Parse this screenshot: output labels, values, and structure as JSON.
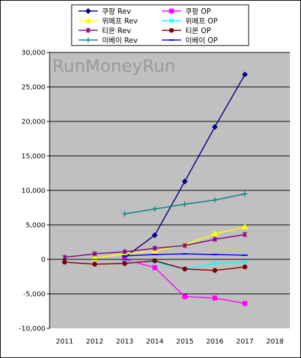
{
  "chart_data": {
    "type": "line",
    "watermark": "RunMoneyRun",
    "categories": [
      "2011",
      "2012",
      "2013",
      "2014",
      "2015",
      "2016",
      "2017",
      "2018"
    ],
    "ylim": [
      -10000,
      30000
    ],
    "yticks": [
      30000,
      25000,
      20000,
      15000,
      10000,
      5000,
      0,
      -5000,
      -10000
    ],
    "ytick_labels": [
      "30,000",
      "25,000",
      "20,000",
      "15,000",
      "10,000",
      "5,000",
      "0",
      "-5,000",
      "-10,000"
    ],
    "grid": true,
    "legend_position": "top",
    "series": [
      {
        "name": "쿠팡 Rev",
        "color": "#000080",
        "marker": "diamond",
        "values": [
          null,
          null,
          300,
          3500,
          11300,
          19200,
          26800,
          null
        ]
      },
      {
        "name": "쿠팡 OP",
        "color": "#ff00ff",
        "marker": "square",
        "values": [
          null,
          null,
          0,
          -1200,
          -5400,
          -5600,
          -6400,
          null
        ]
      },
      {
        "name": "위메프 Rev",
        "color": "#ffff00",
        "marker": "triangle",
        "values": [
          null,
          200,
          800,
          1200,
          2100,
          3700,
          4700,
          null
        ]
      },
      {
        "name": "위메프 OP",
        "color": "#00ffff",
        "marker": "x",
        "values": [
          null,
          null,
          -300,
          -400,
          -1400,
          -600,
          -400,
          null
        ]
      },
      {
        "name": "티몬 Rev",
        "color": "#800080",
        "marker": "star",
        "values": [
          300,
          800,
          1100,
          1600,
          2000,
          2900,
          3600,
          null
        ]
      },
      {
        "name": "티몬 OP",
        "color": "#800000",
        "marker": "circle",
        "values": [
          -400,
          -700,
          -600,
          -200,
          -1400,
          -1600,
          -1100,
          null
        ]
      },
      {
        "name": "이베이 Rev",
        "color": "#008080",
        "marker": "plus",
        "values": [
          null,
          null,
          6600,
          7300,
          8000,
          8600,
          9500,
          null
        ]
      },
      {
        "name": "이베이 OP",
        "color": "#0000ff",
        "marker": "dash",
        "values": [
          null,
          null,
          500,
          700,
          800,
          700,
          600,
          null
        ]
      }
    ]
  }
}
